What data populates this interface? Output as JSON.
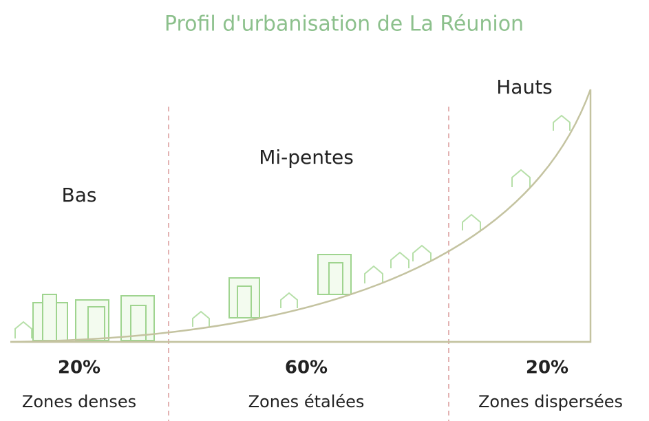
{
  "title": "Profil d'urbanisation de La Réunion",
  "zones": [
    {
      "name": "Bas",
      "share": "20%",
      "description": "Zones denses"
    },
    {
      "name": "Mi-pentes",
      "share": "60%",
      "description": "Zones étalées"
    },
    {
      "name": "Hauts",
      "share": "20%",
      "description": "Zones dispersées"
    }
  ]
}
